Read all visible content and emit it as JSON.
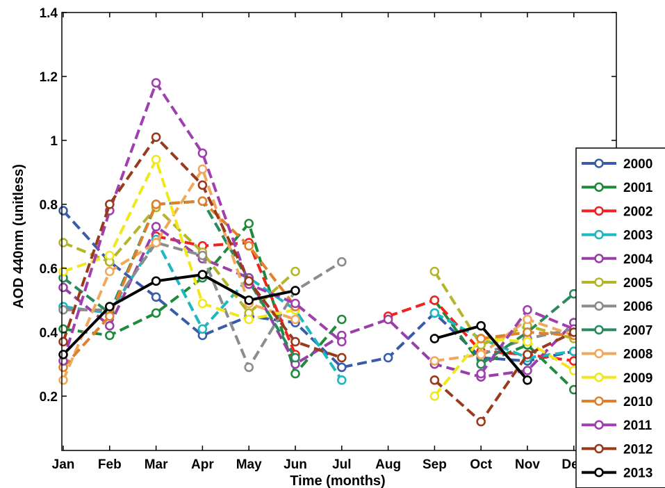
{
  "chart_data": {
    "type": "line",
    "xlabel": "Time (months)",
    "ylabel": "AOD 440nm (unitless)",
    "categories": [
      "Jan",
      "Feb",
      "Mar",
      "Apr",
      "May",
      "Jun",
      "Jul",
      "Aug",
      "Sep",
      "Oct",
      "Nov",
      "Dec"
    ],
    "ylim": [
      0.03,
      1.4
    ],
    "yticks": [
      0.2,
      0.4,
      0.6,
      0.8,
      1,
      1.2,
      1.4
    ],
    "ytick_labels": [
      "0.2",
      "0.4",
      "0.6",
      "0.8",
      "1",
      "1.2",
      "1.4"
    ],
    "grid": false,
    "legend_position": "right",
    "series": [
      {
        "name": "2000",
        "color": "#3a5ba8",
        "dash": true,
        "values": [
          0.78,
          0.62,
          0.51,
          0.39,
          0.45,
          0.43,
          0.29,
          0.32,
          0.46,
          0.32,
          0.31,
          0.34
        ]
      },
      {
        "name": "2001",
        "color": "#1e8a3c",
        "dash": true,
        "values": [
          0.41,
          0.39,
          0.46,
          0.57,
          0.74,
          0.27,
          0.44,
          null,
          0.5,
          0.3,
          0.36,
          0.22
        ]
      },
      {
        "name": "2002",
        "color": "#f0231f",
        "dash": true,
        "values": [
          null,
          null,
          0.7,
          0.67,
          0.68,
          0.33,
          null,
          0.45,
          0.5,
          0.34,
          0.33,
          0.31
        ]
      },
      {
        "name": "2003",
        "color": "#1db8bf",
        "dash": true,
        "values": [
          0.48,
          0.46,
          0.69,
          0.41,
          0.57,
          0.47,
          0.25,
          null,
          0.46,
          0.38,
          0.32,
          0.34
        ]
      },
      {
        "name": "2004",
        "color": "#9b3fa8",
        "dash": true,
        "values": [
          0.54,
          0.42,
          0.73,
          0.63,
          0.57,
          0.3,
          0.39,
          0.44,
          0.3,
          0.26,
          0.28,
          0.43
        ]
      },
      {
        "name": "2005",
        "color": "#b5b52a",
        "dash": true,
        "values": [
          0.68,
          0.62,
          0.79,
          0.65,
          0.46,
          0.59,
          null,
          null,
          0.59,
          0.36,
          0.42,
          0.38
        ]
      },
      {
        "name": "2006",
        "color": "#8c8c8c",
        "dash": true,
        "values": [
          0.47,
          0.47,
          0.68,
          0.64,
          0.29,
          0.53,
          0.62,
          null,
          null,
          0.33,
          0.38,
          0.41
        ]
      },
      {
        "name": "2007",
        "color": "#2a8a5c",
        "dash": true,
        "values": [
          0.57,
          0.46,
          0.8,
          0.81,
          0.56,
          0.32,
          null,
          null,
          null,
          0.3,
          0.4,
          0.52
        ]
      },
      {
        "name": "2008",
        "color": "#f2a85a",
        "dash": true,
        "values": [
          0.25,
          0.59,
          0.68,
          0.91,
          0.49,
          0.44,
          null,
          null,
          0.31,
          0.33,
          0.44,
          0.39
        ]
      },
      {
        "name": "2009",
        "color": "#f0e81a",
        "dash": true,
        "values": [
          0.59,
          0.64,
          0.94,
          0.49,
          0.44,
          0.47,
          null,
          null,
          0.2,
          0.38,
          0.37,
          0.28
        ]
      },
      {
        "name": "2010",
        "color": "#e0802a",
        "dash": true,
        "values": [
          0.29,
          0.45,
          0.8,
          0.81,
          0.67,
          0.48,
          null,
          null,
          null,
          0.38,
          0.4,
          0.39
        ]
      },
      {
        "name": "2011",
        "color": "#a040b0",
        "dash": true,
        "values": [
          0.31,
          0.78,
          1.18,
          0.96,
          0.55,
          0.49,
          0.37,
          null,
          null,
          0.27,
          0.47,
          0.41
        ]
      },
      {
        "name": "2012",
        "color": "#9a3a1c",
        "dash": true,
        "values": [
          0.37,
          0.8,
          1.01,
          0.86,
          0.56,
          0.37,
          0.32,
          null,
          0.25,
          0.12,
          0.33,
          0.4
        ]
      },
      {
        "name": "2013",
        "color": "#000000",
        "dash": false,
        "values": [
          0.33,
          0.48,
          0.56,
          0.58,
          0.5,
          0.53,
          null,
          null,
          0.38,
          0.42,
          0.25,
          null
        ]
      }
    ]
  }
}
